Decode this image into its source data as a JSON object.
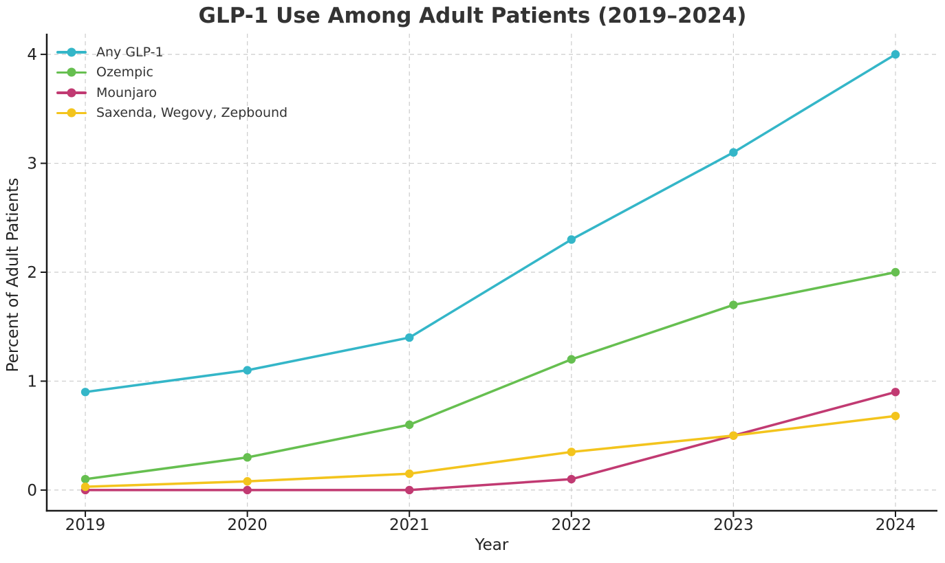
{
  "chart_data": {
    "type": "line",
    "title": "GLP-1 Use Among Adult Patients (2019–2024)",
    "xlabel": "Year",
    "ylabel": "Percent of Adult Patients",
    "x": [
      2019,
      2020,
      2021,
      2022,
      2023,
      2024
    ],
    "x_tick_labels": [
      "2019",
      "2020",
      "2021",
      "2022",
      "2023",
      "2024"
    ],
    "y_ticks": [
      0,
      1,
      2,
      3,
      4
    ],
    "xlim": [
      2018.762,
      2024.259
    ],
    "ylim": [
      -0.19,
      4.19
    ],
    "grid": true,
    "grid_style": "dashed",
    "legend_position": "upper-left",
    "series": [
      {
        "name": "Any GLP-1",
        "color": "#34b6c8",
        "values": [
          0.9,
          1.1,
          1.4,
          2.3,
          3.1,
          4.0
        ]
      },
      {
        "name": "Ozempic",
        "color": "#66bf50",
        "values": [
          0.1,
          0.3,
          0.6,
          1.2,
          1.7,
          2.0
        ]
      },
      {
        "name": "Mounjaro",
        "color": "#c13a72",
        "values": [
          0.0,
          0.0,
          0.0,
          0.1,
          0.5,
          0.9
        ]
      },
      {
        "name": "Saxenda, Wegovy, Zepbound",
        "color": "#f3c41d",
        "values": [
          0.03,
          0.08,
          0.15,
          0.35,
          0.5,
          0.68
        ]
      }
    ],
    "colors": {
      "grid": "#cccccc",
      "axis": "#1a1a1a",
      "title_text": "#333333",
      "tick_text": "#222222",
      "legend_text": "#333333"
    }
  }
}
